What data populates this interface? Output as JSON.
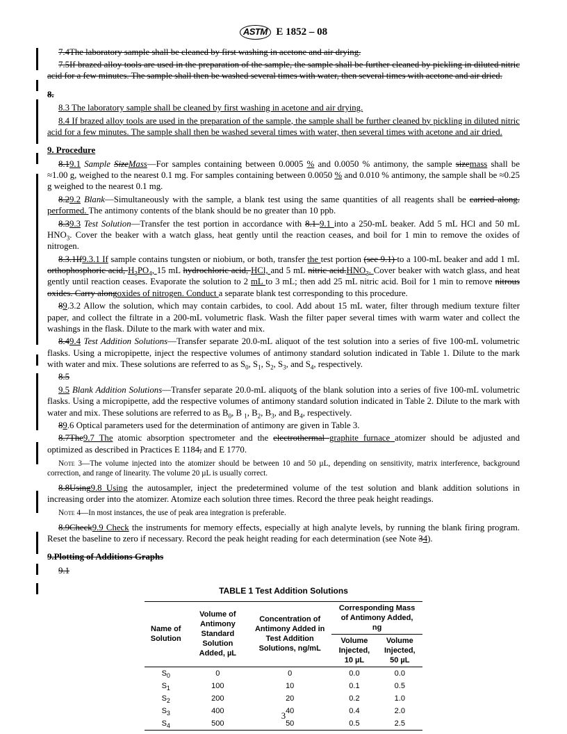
{
  "header": {
    "logo": "ASTM",
    "designation": "E 1852 – 08"
  },
  "body": {
    "p74": "7.4The laboratory sample shall be cleaned by first washing in acetone and air drying.",
    "p75": "7.5If brazed alloy tools are used in the preparation of the sample, the sample shall be further cleaned by pickling in diluted nitric acid for a few minutes. The sample shall then be washed several times with water, then several times with acetone and air dried.",
    "p8": "8.",
    "p83": "8.3 The laboratory sample shall be cleaned by first washing in acetone and air drying.",
    "p84": "8.4 If brazed alloy tools are used in the preparation of the sample, the sample shall be further cleaned by pickling in diluted nitric acid for a few minutes. The sample shall then be washed several times with water, then several times with acetone and air dried.",
    "sec9": "9.  Procedure",
    "p91a": "8.1",
    "p91b": "9.1",
    "p91label": "Sample ",
    "p91size": "Size",
    "p91mass": "Mass",
    "p91c": "—For samples containing between 0.0005 ",
    "p91pct": "%",
    "p91d": " and 0.0050 % antimony, the sample ",
    "p91size2": "size",
    "p91mass2": "mass",
    "p91e": " shall be ≈1.00 g, weighed to the nearest 0.1 mg. For samples containing between 0.0050 ",
    "p91f": " and 0.010 % antimony, the sample shall be ≈0.25 g weighed to the nearest 0.1 mg.",
    "p92a": "8.2",
    "p92b": "9.2",
    "p92label": "Blank",
    "p92c": "—Simultaneously with the sample, a blank test using the same quantities of all reagents shall be ",
    "p92str": "carried along.",
    "p92ul": "performed. ",
    "p92d": "The antimony contents of the blank should be no greater than 10 ppb.",
    "p93a": "8.3",
    "p93b": "9.3",
    "p93label": "Test Solution",
    "p93c": "—Transfer the test portion in accordance with ",
    "p93str1": "8.1 ",
    "p93ul1": "9.1 ",
    "p93d": "into a 250-mL beaker. Add 5 mL HCl and 50 mL HNO",
    "p93e": ". Cover the beaker with a watch glass, heat gently until the reaction ceases, and boil for 1 min to remove the oxides of nitrogen.",
    "p931a": "8.3.1If",
    "p931b": "9.3.1 If",
    "p931c": " sample contains tungsten or niobium, or both, transfer ",
    "p931the": "the ",
    "p931d": "test portion ",
    "p931str1": "(see 9.1) ",
    "p931e": "to a 100-mL beaker and add 1 mL ",
    "p931str2": "orthophosphoric acid, ",
    "p931ul2": "H",
    "p931ul2b": "PO",
    "p931ul2c": ", ",
    "p931f": "15 mL ",
    "p931str3": "hydrochloric acid, ",
    "p931ul3": "HCl, ",
    "p931g": "and 5 mL ",
    "p931str4": "nitric acid.",
    "p931ul4": "HNO",
    "p931ul4b": ". ",
    "p931h": "Cover beaker with watch glass, and heat gently until reaction ceases. Evaporate the solution to 2 ",
    "p931mlul": "mL ",
    "p931i": "to 3 mL; then add 25 mL nitric acid. Boil for 1 min to remove ",
    "p931str5": "nitrous oxides. Carry along",
    "p931ul5": "oxides of nitrogen. Conduct ",
    "p931j": "a separate blank test corresponding to this procedure.",
    "p932a": "8",
    "p932b": "9",
    "p932c": ".3.2  Allow the solution, which may contain carbides, to cool. Add about 15 mL water, filter through medium texture filter paper, and collect the filtrate in a 200-mL volumetric flask. Wash the filter paper several times with warm water and collect the washings in the flask. Dilute to the mark with water and mix.",
    "p94a": "8.4",
    "p94b": "9.4",
    "p94label": "Test Addition Solutions",
    "p94c": "—Transfer separate 20.0-mL aliquot of the test solution into a series of five 100-mL volumetric flasks. Using a micropipette, inject the respective volumes of antimony standard solution indicated in Table 1. Dilute to the mark with water and mix. These solutions are referred to as S",
    "p94d": ", S",
    "p94e": ", and S",
    "p94f": ", respectively.",
    "p85": "8.5",
    "p95b": "9.5",
    "p95label": "Blank Addition Solutions",
    "p95c": "—Transfer separate 20.0-mL aliquot",
    "p95s": "s",
    "p95c2": " of the blank solution into a series of five 100-mL volumetric flasks. Using a micropipette, add the respective volumes of antimony standard solution indicated in Table 2. Dilute to the mark with water and mix. These solutions are referred to as B",
    "p95d": ", B ",
    "p95e": ", and B",
    "p95f": ", respectively.",
    "p96a": "8",
    "p96b": "9",
    "p96c": ".6 Optical parameters used for the determination of antimony are given in Table 3.",
    "p97a": "8.7The",
    "p97b": "9.7 The",
    "p97c": " atomic absorption spectrometer and the ",
    "p97str": "electrothermal ",
    "p97ul": "graphite furnace ",
    "p97d": "atomizer should be adjusted and optimized as described in Practices E 1184",
    "p97str2": ",",
    "p97e": " and E 1770.",
    "note3label": "Note",
    "note3num": "3",
    "note3": "—The volume injected into the atomizer should be between 10 and 50 µL, depending on sensitivity, matrix interference, background correction, and range of linearity. The volume 20 µL is usually correct.",
    "p98a": "8.8Using",
    "p98b": "9.8 Using",
    "p98c": " the autosampler, inject the predetermined volume of the test solution and blank addition solutions in increasing order into the atomizer. Atomize each solution three times. Record the three peak height readings.",
    "note4label": "Note",
    "note4num": "4",
    "note4": "—In most instances, the use of peak area integration is preferable.",
    "p99a": "8.9Check",
    "p99b": "9.9 Check",
    "p99c": " the instruments for memory effects, especially at high analyte levels, by running the blank firing program. Reset the baseline to zero if necessary. Record the peak height reading for each determination (see Note ",
    "p99str": "3",
    "p99ul": "4",
    "p99d": ").",
    "sec9p": "9.Plotting of Additions Graphs",
    "p9p1": "9.1"
  },
  "table1": {
    "title": "TABLE 1  Test Addition Solutions",
    "h_name": "Name of Solution",
    "h_vol": "Volume of Antimony Standard Solution Added, µL",
    "h_conc": "Concentration of Antimony Added in Test Addition Solutions, ng/mL",
    "h_mass_top": "Corresponding Mass of Antimony Added, ng",
    "h_mass_10": "Volume Injected, 10 µL",
    "h_mass_50": "Volume Injected, 50 µL",
    "rows": [
      {
        "name": "S",
        "sub": "0",
        "vol": "0",
        "conc": "0",
        "m10": "0.0",
        "m50": "0.0"
      },
      {
        "name": "S",
        "sub": "1",
        "vol": "100",
        "conc": "10",
        "m10": "0.1",
        "m50": "0.5"
      },
      {
        "name": "S",
        "sub": "2",
        "vol": "200",
        "conc": "20",
        "m10": "0.2",
        "m50": "1.0"
      },
      {
        "name": "S",
        "sub": "3",
        "vol": "400",
        "conc": "40",
        "m10": "0.4",
        "m50": "2.0"
      },
      {
        "name": "S",
        "sub": "4",
        "vol": "500",
        "conc": "50",
        "m10": "0.5",
        "m50": "2.5"
      }
    ]
  },
  "footer": {
    "page": "3"
  }
}
